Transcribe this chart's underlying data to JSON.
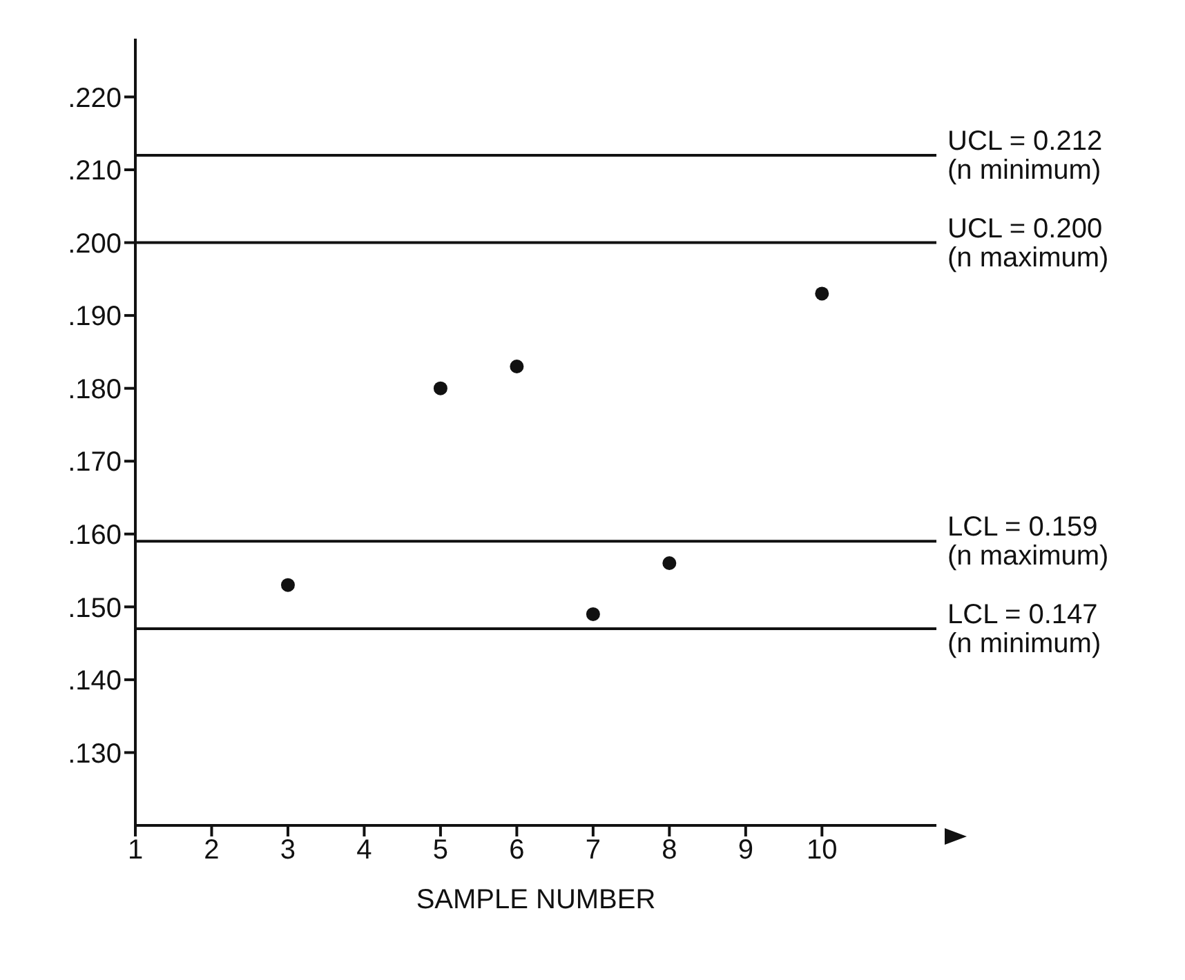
{
  "chart_data": {
    "type": "scatter",
    "xlabel": "SAMPLE NUMBER",
    "x": [
      3,
      5,
      6,
      7,
      8,
      10
    ],
    "values": [
      0.153,
      0.18,
      0.183,
      0.149,
      0.156,
      0.193
    ],
    "color": "#111111",
    "marker": "circle",
    "grid": false,
    "xlim": [
      1,
      11.5
    ],
    "xticks": [
      1,
      2,
      3,
      4,
      5,
      6,
      7,
      8,
      9,
      10
    ],
    "ylim": [
      0.12,
      0.228
    ],
    "yticks": [
      {
        "value": 0.13,
        "label": ".130"
      },
      {
        "value": 0.14,
        "label": ".140"
      },
      {
        "value": 0.15,
        "label": ".150"
      },
      {
        "value": 0.16,
        "label": ".160"
      },
      {
        "value": 0.17,
        "label": ".170"
      },
      {
        "value": 0.18,
        "label": ".180"
      },
      {
        "value": 0.19,
        "label": ".190"
      },
      {
        "value": 0.2,
        "label": ".200"
      },
      {
        "value": 0.21,
        "label": ".210"
      },
      {
        "value": 0.22,
        "label": ".220"
      }
    ],
    "ref_lines": [
      {
        "axis": "y",
        "value": 0.212,
        "label": "UCL = 0.212\n(n minimum)"
      },
      {
        "axis": "y",
        "value": 0.2,
        "label": "UCL = 0.200\n(n maximum)"
      },
      {
        "axis": "y",
        "value": 0.159,
        "label": "LCL = 0.159\n(n maximum)"
      },
      {
        "axis": "y",
        "value": 0.147,
        "label": "LCL = 0.147\n(n minimum)"
      }
    ]
  }
}
